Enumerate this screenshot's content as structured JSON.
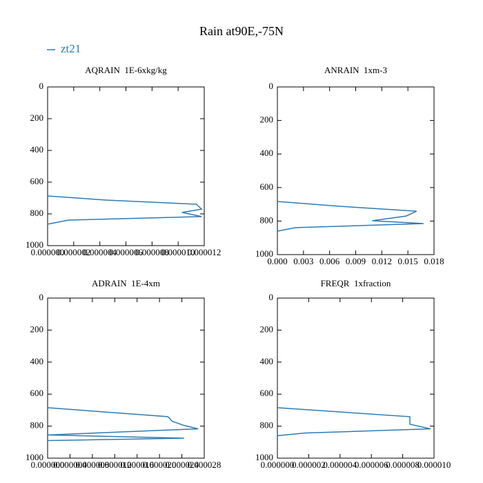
{
  "title": "Rain at90E,-75N",
  "chart_data": [
    {
      "type": "profile",
      "title": "AQRAIN  1E-6xkg/kg",
      "yaxis_reversed": true,
      "xlim": [
        0,
        1.2e-05
      ],
      "xticks": [
        {
          "value": 0,
          "label": "0.000000"
        },
        2e-06,
        4e-06,
        6e-06,
        8e-06,
        {
          "value": 1e-05,
          "label": "0.000010"
        },
        1.2e-05
      ],
      "ylim": [
        0,
        1000
      ],
      "yticks": [
        0,
        200,
        400,
        600,
        800,
        1000
      ],
      "series": [
        {
          "name": "zt21",
          "color": "#2c7bb6",
          "x": [
            0,
            4.5e-06,
            1.14e-05,
            1.18e-05,
            1.03e-05,
            1.18e-05,
            1.6e-06,
            0
          ],
          "y": [
            687,
            713,
            739,
            770,
            791,
            817,
            839,
            865
          ]
        }
      ]
    },
    {
      "type": "profile",
      "title": "ANRAIN  1xm-3",
      "yaxis_reversed": true,
      "xlim": [
        0,
        0.018
      ],
      "xticks": [
        {
          "value": 0,
          "label": "0.000"
        },
        0.003,
        0.006,
        0.009,
        0.012,
        0.015,
        0.018
      ],
      "ylim": [
        0,
        1000
      ],
      "yticks": [
        0,
        200,
        400,
        600,
        800,
        1000
      ],
      "series": [
        {
          "name": "zt21",
          "color": "#2c7bb6",
          "x": [
            0,
            0.0072,
            0.016,
            0.0148,
            0.0109,
            0.0168,
            0.0021,
            0
          ],
          "y": [
            683,
            712,
            741,
            770,
            798,
            815,
            839,
            860
          ]
        }
      ]
    },
    {
      "type": "profile",
      "title": "ADRAIN  1E-4xm",
      "yaxis_reversed": true,
      "xlim": [
        0,
        2.8e-05
      ],
      "xticks": [
        {
          "value": 0,
          "label": "0.000000"
        },
        4e-06,
        8e-06,
        1.2e-05,
        1.6e-05,
        {
          "value": 2e-05,
          "label": "0.000020"
        },
        2.4e-05,
        2.8e-05
      ],
      "ylim": [
        0,
        1000
      ],
      "yticks": [
        0,
        200,
        400,
        600,
        800,
        1000
      ],
      "series": [
        {
          "name": "zt21",
          "color": "#2c7bb6",
          "x": [
            0,
            2.15e-05,
            2.23e-05,
            2.43e-05,
            2.69e-05,
            0,
            2.44e-05,
            0
          ],
          "y": [
            685,
            741,
            770,
            795,
            817,
            855,
            875,
            890
          ]
        }
      ]
    },
    {
      "type": "profile",
      "title": "FREQR  1xfraction",
      "yaxis_reversed": true,
      "xlim": [
        0,
        1e-05
      ],
      "xticks": [
        {
          "value": 0,
          "label": "0.000000"
        },
        2e-06,
        4e-06,
        6e-06,
        8e-06,
        {
          "value": 1e-05,
          "label": "0.000010"
        }
      ],
      "ylim": [
        0,
        1000
      ],
      "yticks": [
        0,
        200,
        400,
        600,
        800,
        1000
      ],
      "series": [
        {
          "name": "zt21",
          "color": "#2c7bb6",
          "x": [
            0,
            8.46e-06,
            8.46e-06,
            9.78e-06,
            1.72e-06,
            0
          ],
          "y": [
            685,
            741,
            788,
            817,
            843,
            860
          ]
        }
      ]
    }
  ]
}
